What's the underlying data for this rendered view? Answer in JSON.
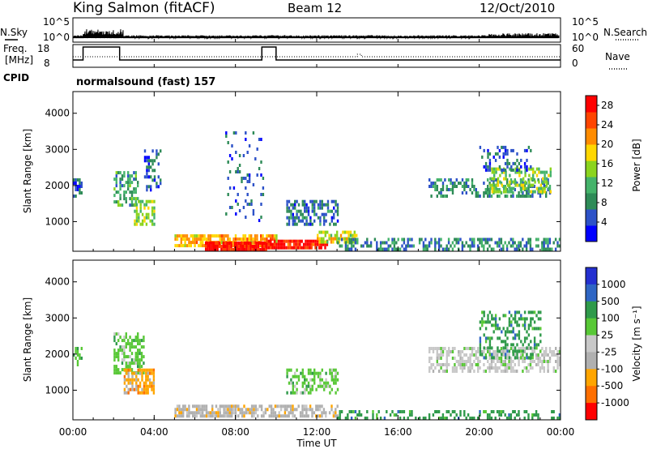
{
  "header": {
    "station": "King Salmon (fitACF)",
    "beam": "Beam 12",
    "date": "12/Oct/2010"
  },
  "meta_panel": {
    "nsky_label": "N.Sky",
    "nsearch_label": "N.Search",
    "freq_label": "Freq.",
    "freq_unit": "[MHz]",
    "nave_label": "Nave",
    "cpid_label": "CPID",
    "cpid_text": "normalsound (fast) 157",
    "noise_ticks": [
      "10^5",
      "10^0"
    ],
    "freq_ticks": [
      "18",
      "8"
    ],
    "nave_ticks": [
      "60",
      "0"
    ]
  },
  "colors": {
    "power": [
      "#0000ff",
      "#2d52c8",
      "#2e8b57",
      "#44b36a",
      "#8bd41e",
      "#ffd700",
      "#ff8c00",
      "#ff4500",
      "#ff0000"
    ],
    "velocity": [
      "#2430d0",
      "#2f66c4",
      "#2f9a4a",
      "#58c836",
      "#c8c8c8",
      "#b0b0b0",
      "#ffa500",
      "#ff6f00",
      "#ff0000"
    ]
  },
  "chart_data": [
    {
      "type": "heatmap",
      "name": "power",
      "xlabel": "",
      "ylabel": "Slant Range [km]",
      "xlim": [
        "00:00",
        "24:00"
      ],
      "ylim": [
        180,
        4600
      ],
      "y_ticks": [
        1000,
        2000,
        3000,
        4000
      ],
      "colorbar": {
        "label": "Power [dB]",
        "ticks": [
          4,
          8,
          12,
          16,
          20,
          24,
          28
        ],
        "range": [
          0,
          30
        ]
      },
      "regions": [
        {
          "t": [
            0.0,
            0.4
          ],
          "r": [
            1700,
            2200
          ],
          "value": 6,
          "density": 0.6
        },
        {
          "t": [
            2.0,
            3.2
          ],
          "r": [
            1500,
            2400
          ],
          "value": 10,
          "density": 0.55
        },
        {
          "t": [
            3.0,
            4.0
          ],
          "r": [
            900,
            1600
          ],
          "value": 14,
          "density": 0.6
        },
        {
          "t": [
            3.5,
            4.3
          ],
          "r": [
            1900,
            3000
          ],
          "value": 6,
          "density": 0.35
        },
        {
          "t": [
            5.0,
            10.0
          ],
          "r": [
            300,
            650
          ],
          "value": 20,
          "density": 0.8
        },
        {
          "t": [
            6.5,
            9.5
          ],
          "r": [
            250,
            450
          ],
          "value": 28,
          "density": 0.9
        },
        {
          "t": [
            9.5,
            12.5
          ],
          "r": [
            250,
            500
          ],
          "value": 27,
          "density": 0.9
        },
        {
          "t": [
            10.5,
            13.0
          ],
          "r": [
            900,
            1600
          ],
          "value": 7,
          "density": 0.5
        },
        {
          "t": [
            12.0,
            14.0
          ],
          "r": [
            450,
            750
          ],
          "value": 17,
          "density": 0.6
        },
        {
          "t": [
            13.0,
            24.0
          ],
          "r": [
            220,
            550
          ],
          "value": 8,
          "density": 0.5
        },
        {
          "t": [
            17.5,
            23.5
          ],
          "r": [
            1700,
            2200
          ],
          "value": 8,
          "density": 0.45
        },
        {
          "t": [
            20.5,
            23.5
          ],
          "r": [
            1800,
            2500
          ],
          "value": 14,
          "density": 0.55
        },
        {
          "t": [
            20.0,
            22.5
          ],
          "r": [
            2400,
            3100
          ],
          "value": 6,
          "density": 0.35
        },
        {
          "t": [
            7.5,
            9.5
          ],
          "r": [
            1000,
            3500
          ],
          "value": 6,
          "density": 0.12
        }
      ]
    },
    {
      "type": "heatmap",
      "name": "velocity",
      "xlabel": "Time UT",
      "ylabel": "Slant Range [km]",
      "xlim": [
        "00:00",
        "24:00"
      ],
      "ylim": [
        180,
        4600
      ],
      "y_ticks": [
        1000,
        2000,
        3000,
        4000
      ],
      "x_ticks": [
        "00:00",
        "04:00",
        "08:00",
        "12:00",
        "16:00",
        "20:00",
        "00:00"
      ],
      "colorbar": {
        "label": "Velocity [m s⁻¹]",
        "ticks": [
          "1000",
          "500",
          "100",
          "25",
          "-25",
          "-100",
          "-500",
          "-1000"
        ]
      },
      "regions": [
        {
          "t": [
            0.0,
            0.4
          ],
          "r": [
            1700,
            2200
          ],
          "value": "25",
          "density": 0.55
        },
        {
          "t": [
            2.0,
            3.5
          ],
          "r": [
            1500,
            2600
          ],
          "value": "25",
          "density": 0.6
        },
        {
          "t": [
            2.5,
            4.0
          ],
          "r": [
            900,
            1600
          ],
          "value": "-500",
          "density": 0.7
        },
        {
          "t": [
            5.0,
            8.0
          ],
          "r": [
            300,
            600
          ],
          "value": "-100",
          "density": 0.8
        },
        {
          "t": [
            8.0,
            13.0
          ],
          "r": [
            300,
            600
          ],
          "value": "-100",
          "density": 0.6
        },
        {
          "t": [
            10.5,
            13.0
          ],
          "r": [
            900,
            1600
          ],
          "value": "25",
          "density": 0.5
        },
        {
          "t": [
            13.0,
            24.0
          ],
          "r": [
            220,
            450
          ],
          "value": "100",
          "density": 0.35
        },
        {
          "t": [
            17.5,
            24.0
          ],
          "r": [
            1500,
            2200
          ],
          "value": "-25",
          "density": 0.6
        },
        {
          "t": [
            20.0,
            23.0
          ],
          "r": [
            1900,
            3200
          ],
          "value": "100",
          "density": 0.4
        }
      ]
    }
  ]
}
